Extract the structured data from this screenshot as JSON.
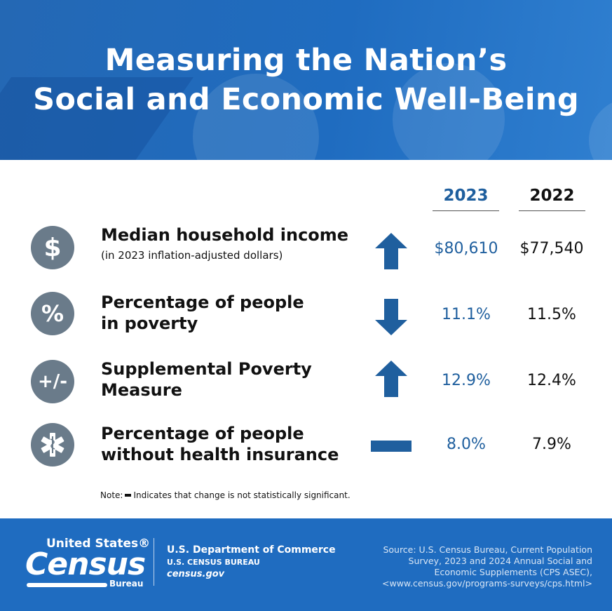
{
  "header": {
    "title_line1": "Measuring the Nation’s",
    "title_line2": "Social and Economic Well-Being"
  },
  "columns": {
    "current": "2023",
    "previous": "2022"
  },
  "rows": [
    {
      "icon": "dollar-icon",
      "icon_text": "$",
      "label_line1": "Median household income",
      "label_sub": "(in 2023 inflation-adjusted dollars)",
      "change": "up",
      "value_2023": "$80,610",
      "value_2022": "$77,540"
    },
    {
      "icon": "percent-icon",
      "icon_text": "%",
      "label_line1": "Percentage of people",
      "label_line2": "in poverty",
      "change": "down",
      "value_2023": "11.1%",
      "value_2022": "11.5%"
    },
    {
      "icon": "plus-minus-icon",
      "icon_text": "+/-",
      "label_line1": "Supplemental Poverty",
      "label_line2": "Measure",
      "change": "up",
      "value_2023": "12.9%",
      "value_2022": "12.4%"
    },
    {
      "icon": "medical-star-icon",
      "label_line1": "Percentage of people",
      "label_line2": "without health insurance",
      "change": "not significant",
      "value_2023": "8.0%",
      "value_2022": "7.9%"
    }
  ],
  "note": {
    "prefix": "Note:",
    "text": "Indicates that change is not statistically significant."
  },
  "footer": {
    "logo_top": "United States®",
    "logo_main": "Census",
    "logo_bottom": "Bureau",
    "dept_line1": "U.S. Department of Commerce",
    "dept_line2": "U.S. CENSUS BUREAU",
    "dept_line3": "census.gov",
    "source_line1": "Source: U.S. Census Bureau, Current Population",
    "source_line2": "Survey, 2023 and 2024 Annual Social and",
    "source_line3": "Economic Supplements (CPS ASEC),",
    "source_line4": "<www.census.gov/programs-surveys/cps.html>"
  },
  "colors": {
    "header_blue": "#1f6cc0",
    "accent_blue": "#1f5f9e",
    "icon_gray": "#6a7b8a"
  }
}
